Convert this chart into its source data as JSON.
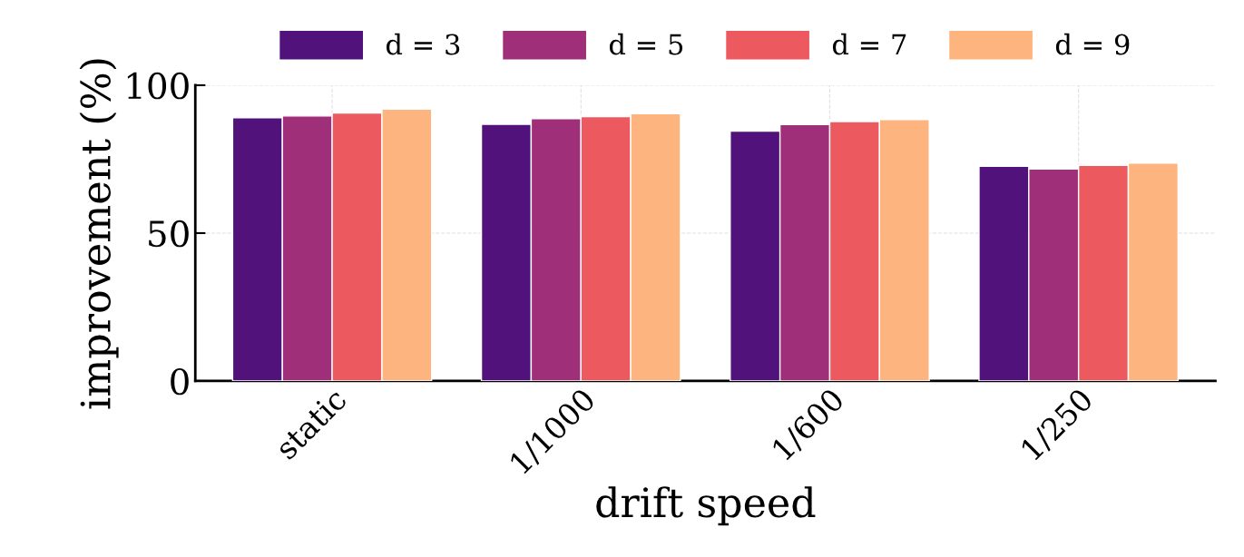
{
  "chart_data": {
    "type": "bar",
    "xlabel": "drift speed",
    "ylabel": "improvement (%)",
    "categories": [
      "static",
      "1/1000",
      "1/600",
      "1/250"
    ],
    "series": [
      {
        "name": "d = 3",
        "color": "#51127c",
        "values": [
          89.0,
          86.8,
          84.5,
          72.6
        ]
      },
      {
        "name": "d = 5",
        "color": "#a02f7a",
        "values": [
          89.6,
          88.7,
          86.7,
          71.7
        ]
      },
      {
        "name": "d = 7",
        "color": "#ec5a60",
        "values": [
          90.6,
          89.4,
          87.7,
          72.9
        ]
      },
      {
        "name": "d = 9",
        "color": "#feb47e",
        "values": [
          91.9,
          90.4,
          88.4,
          73.7
        ]
      }
    ],
    "ylim": [
      0,
      100
    ],
    "yticks": [
      0,
      50,
      100
    ],
    "grid": true,
    "legend": "top"
  }
}
